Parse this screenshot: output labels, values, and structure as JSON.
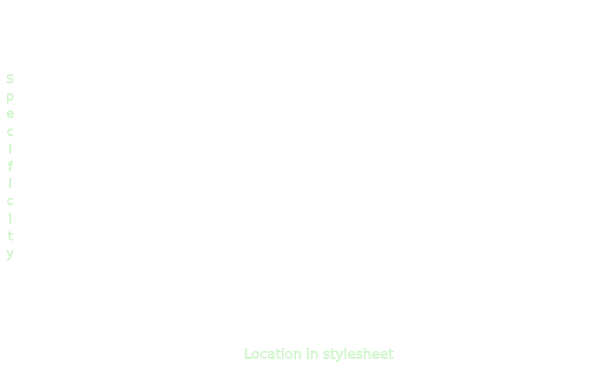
{
  "axes": {
    "y_label": "Specificity",
    "x_label": "Location in stylesheet"
  },
  "colors": {
    "label_outline": "#b9f0b2",
    "background": "#ffffff"
  }
}
